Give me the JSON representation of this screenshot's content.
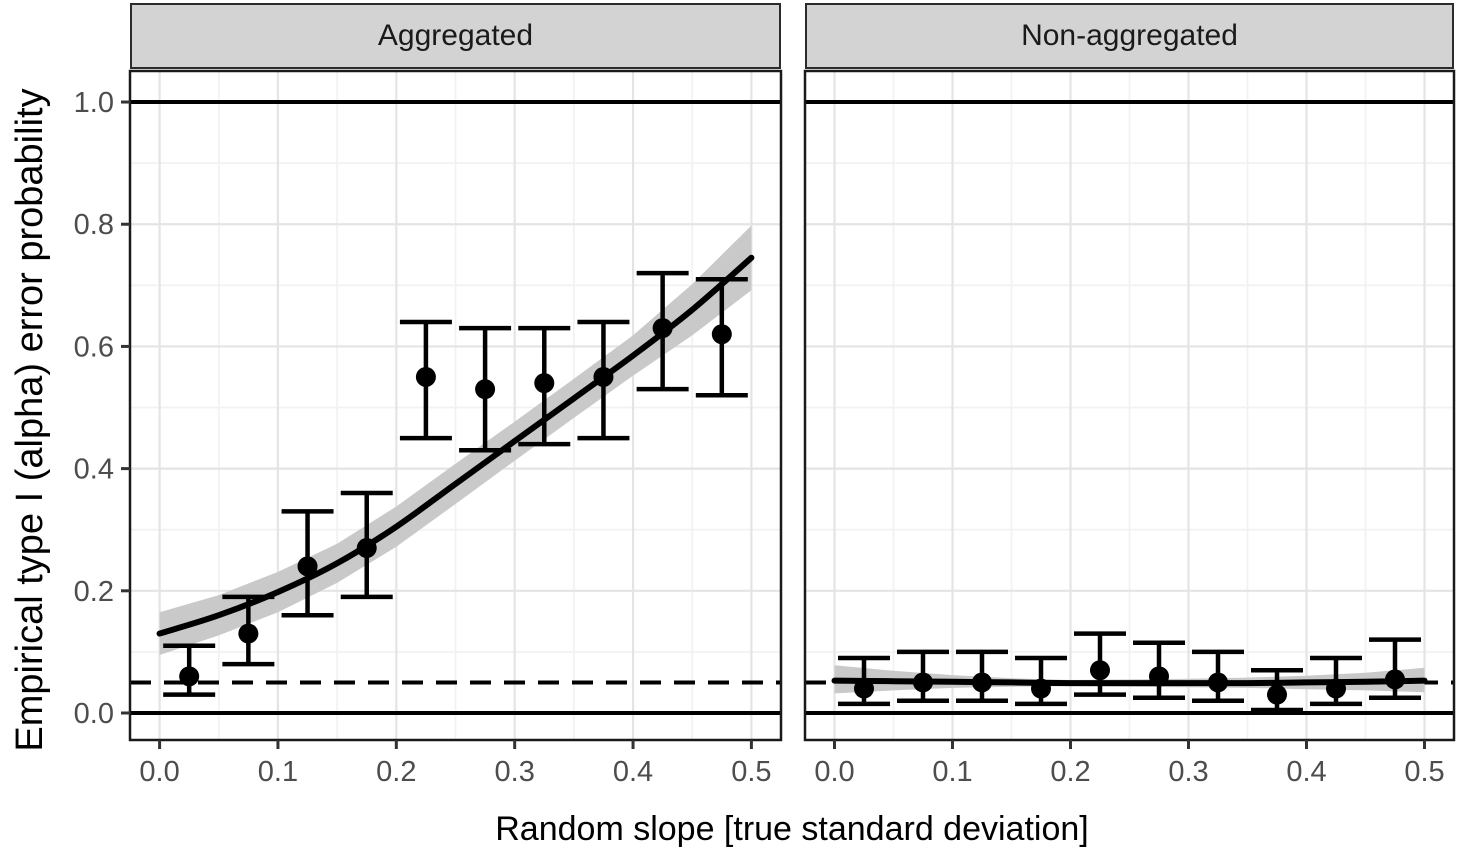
{
  "colors": {
    "background": "#ffffff",
    "panel_background": "#ffffff",
    "strip_fill": "#d3d3d3",
    "strip_border": "#2b2b2b",
    "panel_border": "#1a1a1a",
    "grid_major": "#e4e4e4",
    "grid_minor": "#f2f2f2",
    "tick_mark": "#333333",
    "tick_label": "#4d4d4d",
    "data": "#000000",
    "ribbon": "#c9c9c9"
  },
  "chart_data": {
    "type": "scatter",
    "title": "",
    "xlabel": "Random slope [true standard deviation]",
    "ylabel": "Empirical type I (alpha) error probability",
    "xlim": [
      -0.025,
      0.525
    ],
    "ylim": [
      -0.0442,
      1.0508
    ],
    "x_ticks": [
      0.0,
      0.1,
      0.2,
      0.3,
      0.4,
      0.5
    ],
    "y_ticks": [
      0.0,
      0.2,
      0.4,
      0.6,
      0.8,
      1.0
    ],
    "grid": "major and minor, on",
    "legend": "none",
    "reference_lines": {
      "solid_y": [
        0.0,
        1.0
      ],
      "dashed_y": [
        0.05
      ]
    },
    "facets": [
      {
        "label": "Aggregated",
        "points": {
          "x": [
            0.025,
            0.075,
            0.125,
            0.175,
            0.225,
            0.275,
            0.325,
            0.375,
            0.425,
            0.475
          ],
          "y": [
            0.06,
            0.13,
            0.24,
            0.27,
            0.55,
            0.53,
            0.54,
            0.55,
            0.63,
            0.62
          ],
          "ymin": [
            0.03,
            0.08,
            0.16,
            0.19,
            0.45,
            0.43,
            0.44,
            0.45,
            0.53,
            0.52
          ],
          "ymax": [
            0.11,
            0.19,
            0.33,
            0.36,
            0.64,
            0.63,
            0.63,
            0.64,
            0.72,
            0.71
          ]
        },
        "smooth": {
          "x": [
            0.0,
            0.05,
            0.1,
            0.15,
            0.2,
            0.25,
            0.3,
            0.35,
            0.4,
            0.45,
            0.5
          ],
          "y": [
            0.13,
            0.16,
            0.198,
            0.245,
            0.305,
            0.375,
            0.445,
            0.515,
            0.585,
            0.66,
            0.745
          ],
          "lower": [
            0.095,
            0.127,
            0.165,
            0.213,
            0.272,
            0.342,
            0.413,
            0.483,
            0.552,
            0.618,
            0.692
          ],
          "upper": [
            0.165,
            0.193,
            0.231,
            0.277,
            0.338,
            0.408,
            0.477,
            0.547,
            0.618,
            0.702,
            0.798
          ]
        }
      },
      {
        "label": "Non-aggregated",
        "points": {
          "x": [
            0.025,
            0.075,
            0.125,
            0.175,
            0.225,
            0.275,
            0.325,
            0.375,
            0.425,
            0.475
          ],
          "y": [
            0.04,
            0.05,
            0.05,
            0.04,
            0.07,
            0.06,
            0.05,
            0.03,
            0.04,
            0.055
          ],
          "ymin": [
            0.015,
            0.02,
            0.02,
            0.015,
            0.03,
            0.025,
            0.02,
            0.005,
            0.015,
            0.025
          ],
          "ymax": [
            0.09,
            0.1,
            0.1,
            0.09,
            0.13,
            0.115,
            0.1,
            0.07,
            0.09,
            0.12
          ]
        },
        "smooth": {
          "x": [
            0.0,
            0.05,
            0.1,
            0.15,
            0.2,
            0.25,
            0.3,
            0.35,
            0.4,
            0.45,
            0.5
          ],
          "y": [
            0.053,
            0.052,
            0.051,
            0.05,
            0.049,
            0.049,
            0.049,
            0.049,
            0.05,
            0.051,
            0.053
          ],
          "lower": [
            0.032,
            0.037,
            0.041,
            0.043,
            0.044,
            0.043,
            0.042,
            0.041,
            0.039,
            0.037,
            0.034
          ],
          "upper": [
            0.078,
            0.069,
            0.062,
            0.057,
            0.054,
            0.055,
            0.056,
            0.058,
            0.061,
            0.066,
            0.074
          ]
        }
      }
    ]
  }
}
